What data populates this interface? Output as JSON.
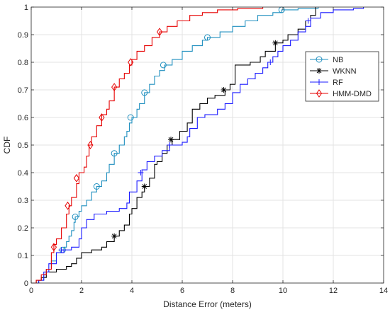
{
  "chart_data": {
    "type": "line",
    "xlabel": "Distance Error (meters)",
    "ylabel": "CDF",
    "xlim": [
      0,
      14
    ],
    "ylim": [
      0,
      1
    ],
    "xticks": [
      "0",
      "2",
      "4",
      "6",
      "8",
      "10",
      "12",
      "14"
    ],
    "yticks": [
      "0",
      "0.1",
      "0.2",
      "0.3",
      "0.4",
      "0.5",
      "0.6",
      "0.7",
      "0.8",
      "0.9",
      "1"
    ],
    "grid": true,
    "legend_position": "right",
    "step": true,
    "series": [
      {
        "name": "NB",
        "color": "#1f8fbf",
        "marker": "circle",
        "points": [
          [
            0,
            0
          ],
          [
            0.1,
            0
          ],
          [
            0.3,
            0.01
          ],
          [
            0.5,
            0.03
          ],
          [
            0.6,
            0.05
          ],
          [
            0.8,
            0.08
          ],
          [
            1.0,
            0.11
          ],
          [
            1.2,
            0.12
          ],
          [
            1.3,
            0.13
          ],
          [
            1.4,
            0.15
          ],
          [
            1.5,
            0.17
          ],
          [
            1.6,
            0.19
          ],
          [
            1.7,
            0.22
          ],
          [
            1.75,
            0.24
          ],
          [
            1.9,
            0.26
          ],
          [
            2.0,
            0.28
          ],
          [
            2.2,
            0.3
          ],
          [
            2.4,
            0.33
          ],
          [
            2.6,
            0.35
          ],
          [
            2.8,
            0.37
          ],
          [
            3.0,
            0.4
          ],
          [
            3.1,
            0.43
          ],
          [
            3.3,
            0.47
          ],
          [
            3.5,
            0.5
          ],
          [
            3.7,
            0.53
          ],
          [
            3.8,
            0.55
          ],
          [
            3.9,
            0.58
          ],
          [
            4.0,
            0.6
          ],
          [
            4.2,
            0.63
          ],
          [
            4.3,
            0.65
          ],
          [
            4.5,
            0.69
          ],
          [
            4.7,
            0.72
          ],
          [
            4.9,
            0.75
          ],
          [
            5.1,
            0.77
          ],
          [
            5.3,
            0.79
          ],
          [
            5.6,
            0.81
          ],
          [
            6.0,
            0.84
          ],
          [
            6.4,
            0.86
          ],
          [
            6.8,
            0.88
          ],
          [
            7.0,
            0.89
          ],
          [
            7.5,
            0.91
          ],
          [
            8.0,
            0.93
          ],
          [
            8.5,
            0.95
          ],
          [
            9.0,
            0.97
          ],
          [
            9.6,
            0.98
          ],
          [
            9.95,
            0.99
          ],
          [
            10.6,
            0.995
          ],
          [
            11.4,
            1.0
          ]
        ],
        "markers": [
          [
            1.25,
            0.12
          ],
          [
            1.75,
            0.24
          ],
          [
            2.6,
            0.35
          ],
          [
            3.3,
            0.47
          ],
          [
            3.95,
            0.6
          ],
          [
            4.5,
            0.69
          ],
          [
            5.25,
            0.79
          ],
          [
            7.0,
            0.89
          ],
          [
            9.95,
            0.99
          ]
        ]
      },
      {
        "name": "WKNN",
        "color": "#000000",
        "marker": "asterisk",
        "points": [
          [
            0,
            0
          ],
          [
            0.2,
            0.01
          ],
          [
            0.4,
            0.02
          ],
          [
            0.6,
            0.04
          ],
          [
            0.8,
            0.04
          ],
          [
            1.0,
            0.05
          ],
          [
            1.3,
            0.05
          ],
          [
            1.4,
            0.06
          ],
          [
            1.6,
            0.07
          ],
          [
            1.8,
            0.09
          ],
          [
            2.0,
            0.11
          ],
          [
            2.4,
            0.12
          ],
          [
            2.8,
            0.13
          ],
          [
            3.0,
            0.15
          ],
          [
            3.3,
            0.17
          ],
          [
            3.5,
            0.19
          ],
          [
            3.7,
            0.21
          ],
          [
            3.9,
            0.25
          ],
          [
            4.0,
            0.27
          ],
          [
            4.2,
            0.31
          ],
          [
            4.4,
            0.33
          ],
          [
            4.5,
            0.35
          ],
          [
            4.7,
            0.38
          ],
          [
            4.9,
            0.43
          ],
          [
            5.0,
            0.44
          ],
          [
            5.2,
            0.47
          ],
          [
            5.4,
            0.5
          ],
          [
            5.6,
            0.52
          ],
          [
            5.9,
            0.55
          ],
          [
            6.2,
            0.58
          ],
          [
            6.4,
            0.63
          ],
          [
            6.7,
            0.65
          ],
          [
            7.0,
            0.67
          ],
          [
            7.3,
            0.68
          ],
          [
            7.7,
            0.7
          ],
          [
            7.9,
            0.72
          ],
          [
            8.1,
            0.79
          ],
          [
            8.7,
            0.8
          ],
          [
            9.1,
            0.82
          ],
          [
            9.3,
            0.84
          ],
          [
            9.7,
            0.87
          ],
          [
            10.0,
            0.88
          ],
          [
            10.2,
            0.9
          ],
          [
            10.6,
            0.92
          ],
          [
            10.9,
            0.95
          ],
          [
            11.1,
            0.97
          ],
          [
            11.3,
            1.0
          ]
        ],
        "markers": [
          [
            3.3,
            0.17
          ],
          [
            4.5,
            0.35
          ],
          [
            5.55,
            0.52
          ],
          [
            7.65,
            0.7
          ],
          [
            9.7,
            0.87
          ]
        ]
      },
      {
        "name": "RF",
        "color": "#1a1aff",
        "marker": "plus",
        "points": [
          [
            0,
            0
          ],
          [
            0.3,
            0.01
          ],
          [
            0.5,
            0.04
          ],
          [
            0.7,
            0.07
          ],
          [
            1.0,
            0.11
          ],
          [
            1.3,
            0.12
          ],
          [
            1.6,
            0.13
          ],
          [
            1.9,
            0.16
          ],
          [
            2.0,
            0.2
          ],
          [
            2.2,
            0.23
          ],
          [
            2.5,
            0.25
          ],
          [
            3.0,
            0.26
          ],
          [
            3.5,
            0.27
          ],
          [
            3.8,
            0.29
          ],
          [
            3.9,
            0.33
          ],
          [
            4.2,
            0.37
          ],
          [
            4.4,
            0.41
          ],
          [
            4.6,
            0.44
          ],
          [
            4.9,
            0.46
          ],
          [
            5.2,
            0.48
          ],
          [
            5.5,
            0.5
          ],
          [
            6.0,
            0.51
          ],
          [
            6.2,
            0.53
          ],
          [
            6.3,
            0.56
          ],
          [
            6.6,
            0.6
          ],
          [
            6.9,
            0.61
          ],
          [
            7.4,
            0.63
          ],
          [
            7.7,
            0.65
          ],
          [
            8.0,
            0.69
          ],
          [
            8.3,
            0.72
          ],
          [
            8.6,
            0.74
          ],
          [
            8.9,
            0.76
          ],
          [
            9.2,
            0.78
          ],
          [
            9.4,
            0.8
          ],
          [
            9.6,
            0.82
          ],
          [
            9.8,
            0.84
          ],
          [
            10.0,
            0.86
          ],
          [
            10.3,
            0.88
          ],
          [
            10.6,
            0.91
          ],
          [
            10.9,
            0.93
          ],
          [
            11.1,
            0.96
          ],
          [
            11.5,
            0.98
          ],
          [
            12.0,
            0.99
          ],
          [
            12.8,
            0.995
          ],
          [
            13.2,
            1.0
          ]
        ],
        "markers": [
          [
            1.2,
            0.12
          ],
          [
            4.35,
            0.4
          ],
          [
            5.5,
            0.5
          ],
          [
            9.5,
            0.8
          ],
          [
            11.0,
            0.95
          ]
        ]
      },
      {
        "name": "HMM-DMD",
        "color": "#e60000",
        "marker": "diamond",
        "points": [
          [
            0,
            0
          ],
          [
            0.2,
            0.01
          ],
          [
            0.4,
            0.03
          ],
          [
            0.6,
            0.05
          ],
          [
            0.8,
            0.11
          ],
          [
            0.9,
            0.14
          ],
          [
            1.0,
            0.16
          ],
          [
            1.2,
            0.2
          ],
          [
            1.4,
            0.25
          ],
          [
            1.5,
            0.28
          ],
          [
            1.6,
            0.31
          ],
          [
            1.8,
            0.36
          ],
          [
            1.9,
            0.4
          ],
          [
            2.1,
            0.42
          ],
          [
            2.2,
            0.46
          ],
          [
            2.3,
            0.5
          ],
          [
            2.4,
            0.53
          ],
          [
            2.6,
            0.57
          ],
          [
            2.8,
            0.61
          ],
          [
            3.0,
            0.63
          ],
          [
            3.1,
            0.66
          ],
          [
            3.3,
            0.71
          ],
          [
            3.5,
            0.74
          ],
          [
            3.7,
            0.76
          ],
          [
            3.9,
            0.79
          ],
          [
            4.0,
            0.81
          ],
          [
            4.2,
            0.84
          ],
          [
            4.5,
            0.86
          ],
          [
            4.8,
            0.89
          ],
          [
            5.1,
            0.91
          ],
          [
            5.4,
            0.93
          ],
          [
            5.8,
            0.95
          ],
          [
            6.3,
            0.97
          ],
          [
            6.8,
            0.98
          ],
          [
            7.4,
            0.99
          ],
          [
            8.2,
            0.995
          ],
          [
            9.2,
            1.0
          ]
        ],
        "markers": [
          [
            0.9,
            0.13
          ],
          [
            1.45,
            0.28
          ],
          [
            1.8,
            0.38
          ],
          [
            2.35,
            0.5
          ],
          [
            2.8,
            0.6
          ],
          [
            3.3,
            0.71
          ],
          [
            3.95,
            0.8
          ],
          [
            5.1,
            0.91
          ]
        ]
      }
    ]
  }
}
